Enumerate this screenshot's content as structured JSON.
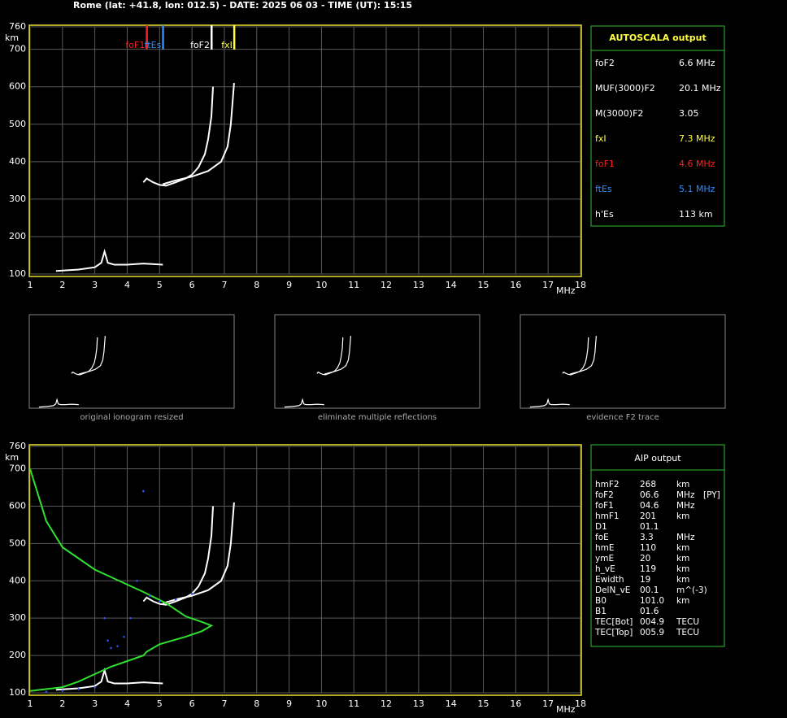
{
  "header": "Rome (lat: +41.8, lon: 012.5) - DATE: 2025 06 03 - TIME (UT): 15:15",
  "chart_data": [
    {
      "type": "line",
      "xlabel": "MHz",
      "ylabel": "km",
      "xlim": [
        1,
        18
      ],
      "ylim": [
        100,
        760
      ],
      "xticks": [
        1,
        2,
        3,
        4,
        5,
        6,
        7,
        8,
        9,
        10,
        11,
        12,
        13,
        14,
        15,
        16,
        17,
        18
      ],
      "yticks": [
        100,
        200,
        300,
        400,
        500,
        600,
        700,
        760
      ],
      "grid": true,
      "markers": [
        {
          "label": "foF1",
          "x": 4.6,
          "color": "#ff2020"
        },
        {
          "label": "ftEs",
          "x": 5.1,
          "color": "#2f8cff"
        },
        {
          "label": "foF2",
          "x": 6.6,
          "color": "#ffffff"
        },
        {
          "label": "fxI",
          "x": 7.3,
          "color": "#ffff40"
        }
      ],
      "series": [
        {
          "color": "#ffffff",
          "x": [
            1.8,
            2.5,
            3.0,
            3.2,
            3.3,
            3.4,
            3.6,
            4.0,
            4.5,
            5.1
          ],
          "values": [
            108,
            112,
            118,
            130,
            160,
            130,
            125,
            125,
            128,
            125
          ]
        },
        {
          "color": "#ffffff",
          "x": [
            4.5,
            4.6,
            4.8,
            5.0,
            5.2,
            5.5,
            5.8,
            6.0,
            6.2,
            6.4,
            6.5,
            6.6,
            6.65
          ],
          "values": [
            345,
            355,
            345,
            338,
            336,
            345,
            355,
            365,
            385,
            420,
            460,
            520,
            600
          ]
        },
        {
          "color": "#ffffff",
          "x": [
            5.1,
            5.5,
            6.0,
            6.5,
            6.9,
            7.1,
            7.2,
            7.3
          ],
          "values": [
            340,
            350,
            360,
            375,
            400,
            440,
            500,
            610
          ]
        }
      ]
    },
    {
      "type": "line",
      "xlabel": "MHz",
      "ylabel": "km",
      "xlim": [
        1,
        18
      ],
      "ylim": [
        100,
        760
      ],
      "xticks": [
        1,
        2,
        3,
        4,
        5,
        6,
        7,
        8,
        9,
        10,
        11,
        12,
        13,
        14,
        15,
        16,
        17,
        18
      ],
      "yticks": [
        100,
        200,
        300,
        400,
        500,
        600,
        700,
        760
      ],
      "grid": true,
      "series": [
        {
          "color": "#ffffff",
          "x": [
            1.8,
            2.5,
            3.0,
            3.2,
            3.3,
            3.4,
            3.6,
            4.0,
            4.5,
            5.1
          ],
          "values": [
            108,
            112,
            118,
            130,
            160,
            130,
            125,
            125,
            128,
            125
          ]
        },
        {
          "color": "#ffffff",
          "x": [
            4.5,
            4.6,
            4.8,
            5.0,
            5.2,
            5.5,
            5.8,
            6.0,
            6.2,
            6.4,
            6.5,
            6.6,
            6.65
          ],
          "values": [
            345,
            355,
            345,
            338,
            336,
            345,
            355,
            365,
            385,
            420,
            460,
            520,
            600
          ]
        },
        {
          "color": "#ffffff",
          "x": [
            5.1,
            5.5,
            6.0,
            6.5,
            6.9,
            7.1,
            7.2,
            7.3
          ],
          "values": [
            340,
            350,
            360,
            375,
            400,
            440,
            500,
            610
          ]
        },
        {
          "color": "#30e030",
          "x": [
            1,
            1.5,
            2,
            3,
            4,
            4.5,
            5.2,
            5.8,
            6.3,
            6.6,
            6.3,
            5.8,
            5.0,
            4.6,
            4.5,
            4,
            3.5,
            3,
            2.5,
            2,
            1
          ],
          "values": [
            700,
            560,
            490,
            430,
            390,
            370,
            340,
            305,
            290,
            280,
            265,
            250,
            230,
            210,
            200,
            185,
            170,
            150,
            130,
            115,
            105
          ]
        },
        {
          "color": "#2f50ff",
          "marker": "dots",
          "x": [
            1.5,
            2,
            2.5,
            3,
            3.3,
            3.4,
            3.5,
            3.7,
            3.9,
            4.1,
            4.3,
            4.5,
            4.7,
            5.0,
            5.5,
            6.0
          ],
          "values": [
            103,
            106,
            110,
            115,
            300,
            240,
            220,
            225,
            250,
            300,
            400,
            640,
            360,
            345,
            350,
            365
          ]
        }
      ]
    }
  ],
  "autoscala": {
    "title": "AUTOSCALA output",
    "rows": [
      {
        "label": "foF2",
        "value": "6.6 MHz",
        "color": "#ffffff"
      },
      {
        "label": "MUF(3000)F2",
        "value": "20.1 MHz",
        "color": "#ffffff"
      },
      {
        "label": "M(3000)F2",
        "value": "3.05",
        "color": "#ffffff"
      },
      {
        "label": "fxI",
        "value": "7.3 MHz",
        "color": "#ffff40"
      },
      {
        "label": "foF1",
        "value": "4.6 MHz",
        "color": "#ff2020"
      },
      {
        "label": "ftEs",
        "value": "5.1 MHz",
        "color": "#2f8cff"
      },
      {
        "label": "h'Es",
        "value": "113    km",
        "color": "#ffffff"
      }
    ]
  },
  "thumbnails": [
    "original ionogram resized",
    "eliminate multiple reflections",
    "evidence F2 trace"
  ],
  "aip": {
    "title": "AIP output",
    "rows": [
      [
        "hmF2",
        "268",
        "km"
      ],
      [
        "foF2",
        "06.6",
        "MHz",
        "[PY]"
      ],
      [
        "foF1",
        "04.6",
        "MHz"
      ],
      [
        "hmF1",
        "201",
        "km"
      ],
      [
        "D1",
        "01.1"
      ],
      [
        "foE",
        "3.3",
        "MHz"
      ],
      [
        "hmE",
        "110",
        "km"
      ],
      [
        "ymE",
        "20",
        "km"
      ],
      [
        "h_vE",
        "119",
        "km"
      ],
      [
        "Ewidth",
        "19",
        "km"
      ],
      [
        "DelN_vE",
        "00.1",
        "m^(-3)"
      ],
      [
        "B0",
        "101.0",
        "km"
      ],
      [
        "B1",
        "01.6"
      ],
      [
        "TEC[Bot]",
        "004.9",
        "TECU"
      ],
      [
        "TEC[Top]",
        "005.9",
        "TECU"
      ]
    ]
  }
}
